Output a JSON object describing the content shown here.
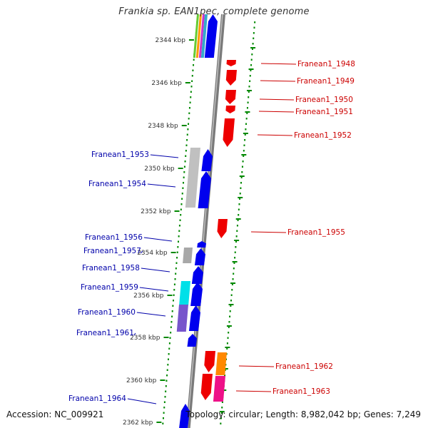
{
  "title": "Frankia sp. EAN1pec, complete genome",
  "footer": {
    "accession": "Accession: NC_009921",
    "topology": "Topology: circular; Length: 8,982,042 bp; Genes: 7,249"
  },
  "colors": {
    "plus_strand": "#0000ee",
    "minus_strand": "#ee0000",
    "plus_label": "#0000aa",
    "minus_label": "#cc0000",
    "backbone": "#888888",
    "ticks": "#008800"
  },
  "ticks": [
    "2344 kbp",
    "2346 kbp",
    "2348 kbp",
    "2350 kbp",
    "2352 kbp",
    "2354 kbp",
    "2356 kbp",
    "2358 kbp",
    "2360 kbp",
    "2362 kbp"
  ],
  "genes_left": [
    "Franean1_1953",
    "Franean1_1954",
    "Franean1_1956",
    "Franean1_1957",
    "Franean1_1958",
    "Franean1_1959",
    "Franean1_1960",
    "Franean1_1961",
    "Franean1_1964"
  ],
  "genes_right": [
    "Franean1_1948",
    "Franean1_1949",
    "Franean1_1950",
    "Franean1_1951",
    "Franean1_1952",
    "Franean1_1955",
    "Franean1_1962",
    "Franean1_1963"
  ]
}
